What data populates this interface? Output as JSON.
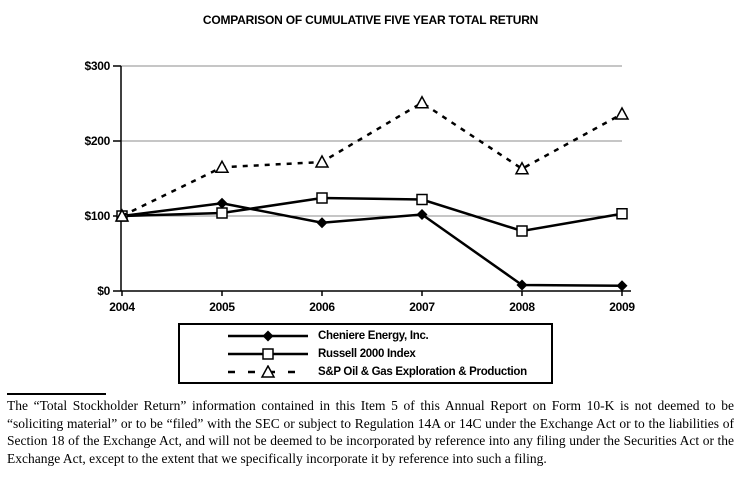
{
  "title": "COMPARISON OF CUMULATIVE FIVE YEAR TOTAL RETURN",
  "chart_data": {
    "type": "line",
    "categories": [
      "2004",
      "2005",
      "2006",
      "2007",
      "2008",
      "2009"
    ],
    "series": [
      {
        "name": "Cheniere Energy, Inc.",
        "values": [
          100,
          117,
          91,
          102,
          8,
          7
        ],
        "marker": "diamond-filled",
        "line": "solid"
      },
      {
        "name": "Russell 2000 Index",
        "values": [
          100,
          104,
          124,
          122,
          80,
          103
        ],
        "marker": "square-open",
        "line": "solid"
      },
      {
        "name": "S&P Oil & Gas Exploration & Production",
        "values": [
          100,
          165,
          172,
          251,
          163,
          236
        ],
        "marker": "triangle-open",
        "line": "dashed"
      }
    ],
    "xlabel": "",
    "ylabel": "",
    "ylim": [
      0,
      300
    ],
    "y_tick_labels": [
      "$0",
      "$100",
      "$200",
      "$300"
    ],
    "grid": "horizontal",
    "legend_position": "bottom-boxed",
    "colors": {
      "series": "#000000",
      "grid": "#8c8c8c",
      "background": "#ffffff"
    }
  },
  "footnote": {
    "text": "The “Total Stockholder Return” information contained in this Item 5 of this Annual Report on Form 10-K is not deemed to be “soliciting material” or to be “filed” with the SEC or subject to Regulation 14A or 14C under the Exchange Act or to the liabilities of Section 18 of the Exchange Act, and will not be deemed to be incorporated by reference into any filing under the Securities Act or the Exchange Act, except to the extent that we specifically incorporate it by reference into such a filing."
  }
}
